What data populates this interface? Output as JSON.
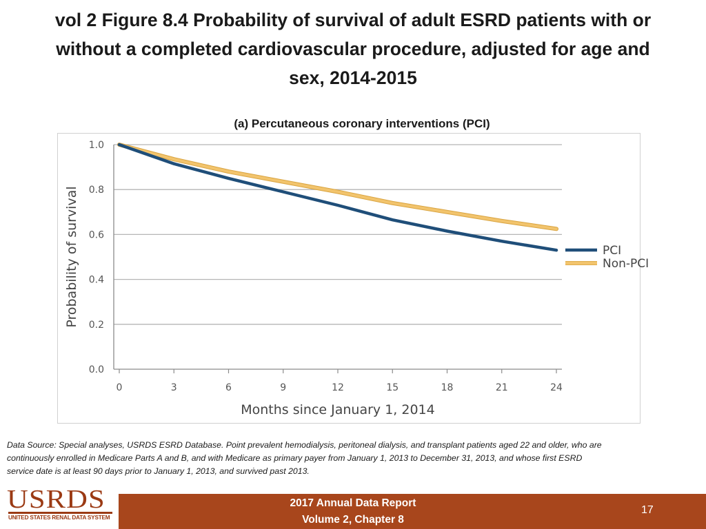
{
  "title": {
    "line1": "vol 2 Figure 8.4 Probability of survival of adult ESRD patients with or",
    "line2": "without a completed cardiovascular procedure, adjusted for age and",
    "line3": "sex, 2014-2015"
  },
  "chart_data": {
    "type": "line",
    "title": "(a) Percutaneous coronary interventions (PCI)",
    "xlabel": "Months since January 1, 2014",
    "ylabel": "Probability of survival",
    "xlim": [
      0,
      24
    ],
    "ylim": [
      0.0,
      1.0
    ],
    "x_ticks": [
      "0",
      "3",
      "6",
      "9",
      "12",
      "15",
      "18",
      "21",
      "24"
    ],
    "y_ticks": [
      "0.0",
      "0.2",
      "0.4",
      "0.6",
      "0.8",
      "1.0"
    ],
    "grid": "horizontal",
    "legend_position": "right",
    "x": [
      0,
      3,
      6,
      9,
      12,
      15,
      18,
      21,
      24
    ],
    "series": [
      {
        "name": "PCI",
        "color": "#1f4e79",
        "values": [
          1.0,
          0.915,
          0.85,
          0.79,
          0.73,
          0.665,
          0.615,
          0.57,
          0.53
        ]
      },
      {
        "name": "Non-PCI",
        "color": "#f2c46d",
        "values": [
          1.0,
          0.935,
          0.88,
          0.835,
          0.79,
          0.74,
          0.7,
          0.66,
          0.625
        ]
      }
    ]
  },
  "source": {
    "line1": "Data Source: Special analyses, USRDS ESRD Database. Point prevalent hemodialysis, peritoneal dialysis, and transplant patients aged 22 and older, who are",
    "line2": "continuously enrolled in Medicare Parts A and B, and with Medicare as primary payer from January 1, 2013 to December 31, 2013, and whose first ESRD",
    "line3": "service date is at least 90 days prior to January 1, 2013, and survived past 2013."
  },
  "footer": {
    "logo": "USRDS",
    "logo_subtitle": "UNITED STATES RENAL DATA SYSTEM",
    "report_line1": "2017 Annual Data Report",
    "report_line2": "Volume 2, Chapter 8",
    "page_number": "17"
  },
  "colors": {
    "footer_bar": "#a8461c",
    "logo": "#9b3a14"
  }
}
